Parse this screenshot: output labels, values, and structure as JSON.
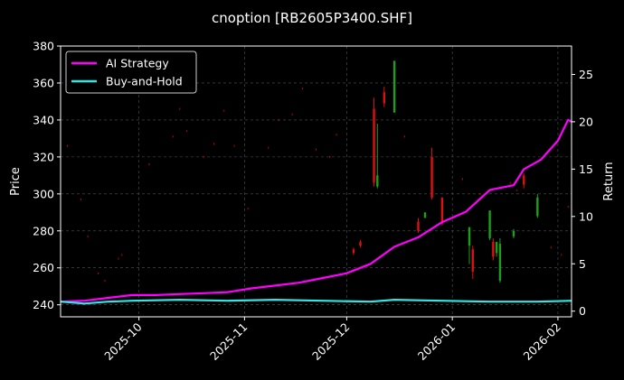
{
  "chart_data": {
    "type": "candlestick-line",
    "title": "cnoption [RB2605P3400.SHF]",
    "ylabel_left": "Price",
    "ylabel_right": "Return",
    "xlabel": "",
    "ylim_left": [
      233.5,
      380
    ],
    "yticks_left": [
      240,
      260,
      280,
      300,
      320,
      340,
      360,
      380
    ],
    "ylim_right": [
      -0.6,
      28
    ],
    "yticks_right": [
      0,
      5,
      10,
      15,
      20,
      25
    ],
    "xlim": [
      "2025-09-08",
      "2026-02-05"
    ],
    "xticks": [
      "2025-10",
      "2025-11",
      "2025-12",
      "2026-01",
      "2026-02"
    ],
    "grid": true,
    "legend_position": "top-left",
    "series": [
      {
        "name": "AI Strategy",
        "color": "#ff00ff",
        "points": [
          [
            "2025-09-08",
            1.0
          ],
          [
            "2025-09-15",
            1.1
          ],
          [
            "2025-09-22",
            1.4
          ],
          [
            "2025-09-29",
            1.7
          ],
          [
            "2025-10-06",
            1.7
          ],
          [
            "2025-10-13",
            1.8
          ],
          [
            "2025-10-20",
            1.9
          ],
          [
            "2025-10-27",
            2.0
          ],
          [
            "2025-11-03",
            2.4
          ],
          [
            "2025-11-10",
            2.7
          ],
          [
            "2025-11-17",
            3.0
          ],
          [
            "2025-11-24",
            3.5
          ],
          [
            "2025-12-01",
            4.0
          ],
          [
            "2025-12-08",
            5.0
          ],
          [
            "2025-12-15",
            6.8
          ],
          [
            "2025-12-22",
            7.8
          ],
          [
            "2025-12-29",
            9.4
          ],
          [
            "2026-01-05",
            10.5
          ],
          [
            "2026-01-12",
            12.8
          ],
          [
            "2026-01-19",
            13.3
          ],
          [
            "2026-01-22",
            15.0
          ],
          [
            "2026-01-27",
            16.0
          ],
          [
            "2026-02-01",
            18.0
          ],
          [
            "2026-02-04",
            20.2
          ],
          [
            "2026-02-05",
            20.0
          ]
        ]
      },
      {
        "name": "Buy-and-Hold",
        "color": "#33e6e6",
        "points": [
          [
            "2025-09-08",
            1.0
          ],
          [
            "2025-09-15",
            0.8
          ],
          [
            "2025-09-22",
            1.0
          ],
          [
            "2025-09-29",
            1.1
          ],
          [
            "2025-10-13",
            1.2
          ],
          [
            "2025-10-27",
            1.1
          ],
          [
            "2025-11-10",
            1.2
          ],
          [
            "2025-11-24",
            1.1
          ],
          [
            "2025-12-08",
            1.0
          ],
          [
            "2025-12-15",
            1.2
          ],
          [
            "2025-12-29",
            1.1
          ],
          [
            "2026-01-12",
            1.0
          ],
          [
            "2026-01-26",
            1.0
          ],
          [
            "2026-02-05",
            1.1
          ]
        ]
      }
    ],
    "candles": [
      {
        "date": "2025-12-03",
        "open": 268,
        "close": 270,
        "high": 271,
        "low": 267,
        "dir": "down"
      },
      {
        "date": "2025-12-05",
        "open": 272,
        "close": 274,
        "high": 275,
        "low": 271,
        "dir": "down"
      },
      {
        "date": "2025-12-09",
        "open": 306,
        "close": 346,
        "high": 352,
        "low": 304,
        "dir": "down"
      },
      {
        "date": "2025-12-10",
        "open": 304,
        "close": 310,
        "high": 338,
        "low": 303,
        "dir": "up"
      },
      {
        "date": "2025-12-12",
        "open": 349,
        "close": 355,
        "high": 358,
        "low": 347,
        "dir": "down"
      },
      {
        "date": "2025-12-15",
        "open": 344,
        "close": 372,
        "high": 372,
        "low": 344,
        "dir": "up"
      },
      {
        "date": "2025-12-22",
        "open": 280,
        "close": 285,
        "high": 287,
        "low": 279,
        "dir": "down"
      },
      {
        "date": "2025-12-24",
        "open": 287,
        "close": 290,
        "high": 290,
        "low": 287,
        "dir": "up"
      },
      {
        "date": "2025-12-26",
        "open": 298,
        "close": 320,
        "high": 325,
        "low": 297,
        "dir": "down"
      },
      {
        "date": "2025-12-29",
        "open": 284,
        "close": 298,
        "high": 298,
        "low": 283,
        "dir": "down"
      },
      {
        "date": "2026-01-06",
        "open": 272,
        "close": 282,
        "high": 282,
        "low": 262,
        "dir": "up"
      },
      {
        "date": "2026-01-07",
        "open": 258,
        "close": 270,
        "high": 272,
        "low": 254,
        "dir": "down"
      },
      {
        "date": "2026-01-12",
        "open": 276,
        "close": 291,
        "high": 291,
        "low": 275,
        "dir": "up"
      },
      {
        "date": "2026-01-13",
        "open": 266,
        "close": 274,
        "high": 276,
        "low": 264,
        "dir": "down"
      },
      {
        "date": "2026-01-14",
        "open": 268,
        "close": 274,
        "high": 274,
        "low": 266,
        "dir": "up"
      },
      {
        "date": "2026-01-15",
        "open": 253,
        "close": 273,
        "high": 276,
        "low": 252,
        "dir": "up"
      },
      {
        "date": "2026-01-19",
        "open": 277,
        "close": 280,
        "high": 281,
        "low": 276,
        "dir": "up"
      },
      {
        "date": "2026-01-22",
        "open": 305,
        "close": 310,
        "high": 311,
        "low": 303,
        "dir": "down"
      },
      {
        "date": "2026-01-26",
        "open": 288,
        "close": 298,
        "high": 300,
        "low": 287,
        "dir": "up"
      }
    ],
    "ticks_marks": [
      [
        "2025-09-10",
        326
      ],
      [
        "2025-09-14",
        297
      ],
      [
        "2025-09-16",
        277
      ],
      [
        "2025-09-19",
        257
      ],
      [
        "2025-09-21",
        253
      ],
      [
        "2025-09-25",
        265
      ],
      [
        "2025-09-26",
        267
      ],
      [
        "2025-10-04",
        316
      ],
      [
        "2025-10-11",
        331
      ],
      [
        "2025-10-13",
        346
      ],
      [
        "2025-10-15",
        334
      ],
      [
        "2025-10-20",
        320
      ],
      [
        "2025-10-23",
        327
      ],
      [
        "2025-10-26",
        345
      ],
      [
        "2025-10-29",
        326
      ],
      [
        "2025-11-02",
        292
      ],
      [
        "2025-11-08",
        325
      ],
      [
        "2025-11-11",
        340
      ],
      [
        "2025-11-15",
        343
      ],
      [
        "2025-11-18",
        357
      ],
      [
        "2025-11-22",
        324
      ],
      [
        "2025-11-26",
        320
      ],
      [
        "2025-11-28",
        332
      ],
      [
        "2025-12-18",
        331
      ],
      [
        "2026-01-04",
        308
      ],
      [
        "2026-01-09",
        300
      ],
      [
        "2026-01-18",
        306
      ],
      [
        "2026-01-20",
        302
      ],
      [
        "2026-01-30",
        271
      ],
      [
        "2026-02-02",
        267
      ],
      [
        "2026-02-04",
        293
      ]
    ]
  }
}
